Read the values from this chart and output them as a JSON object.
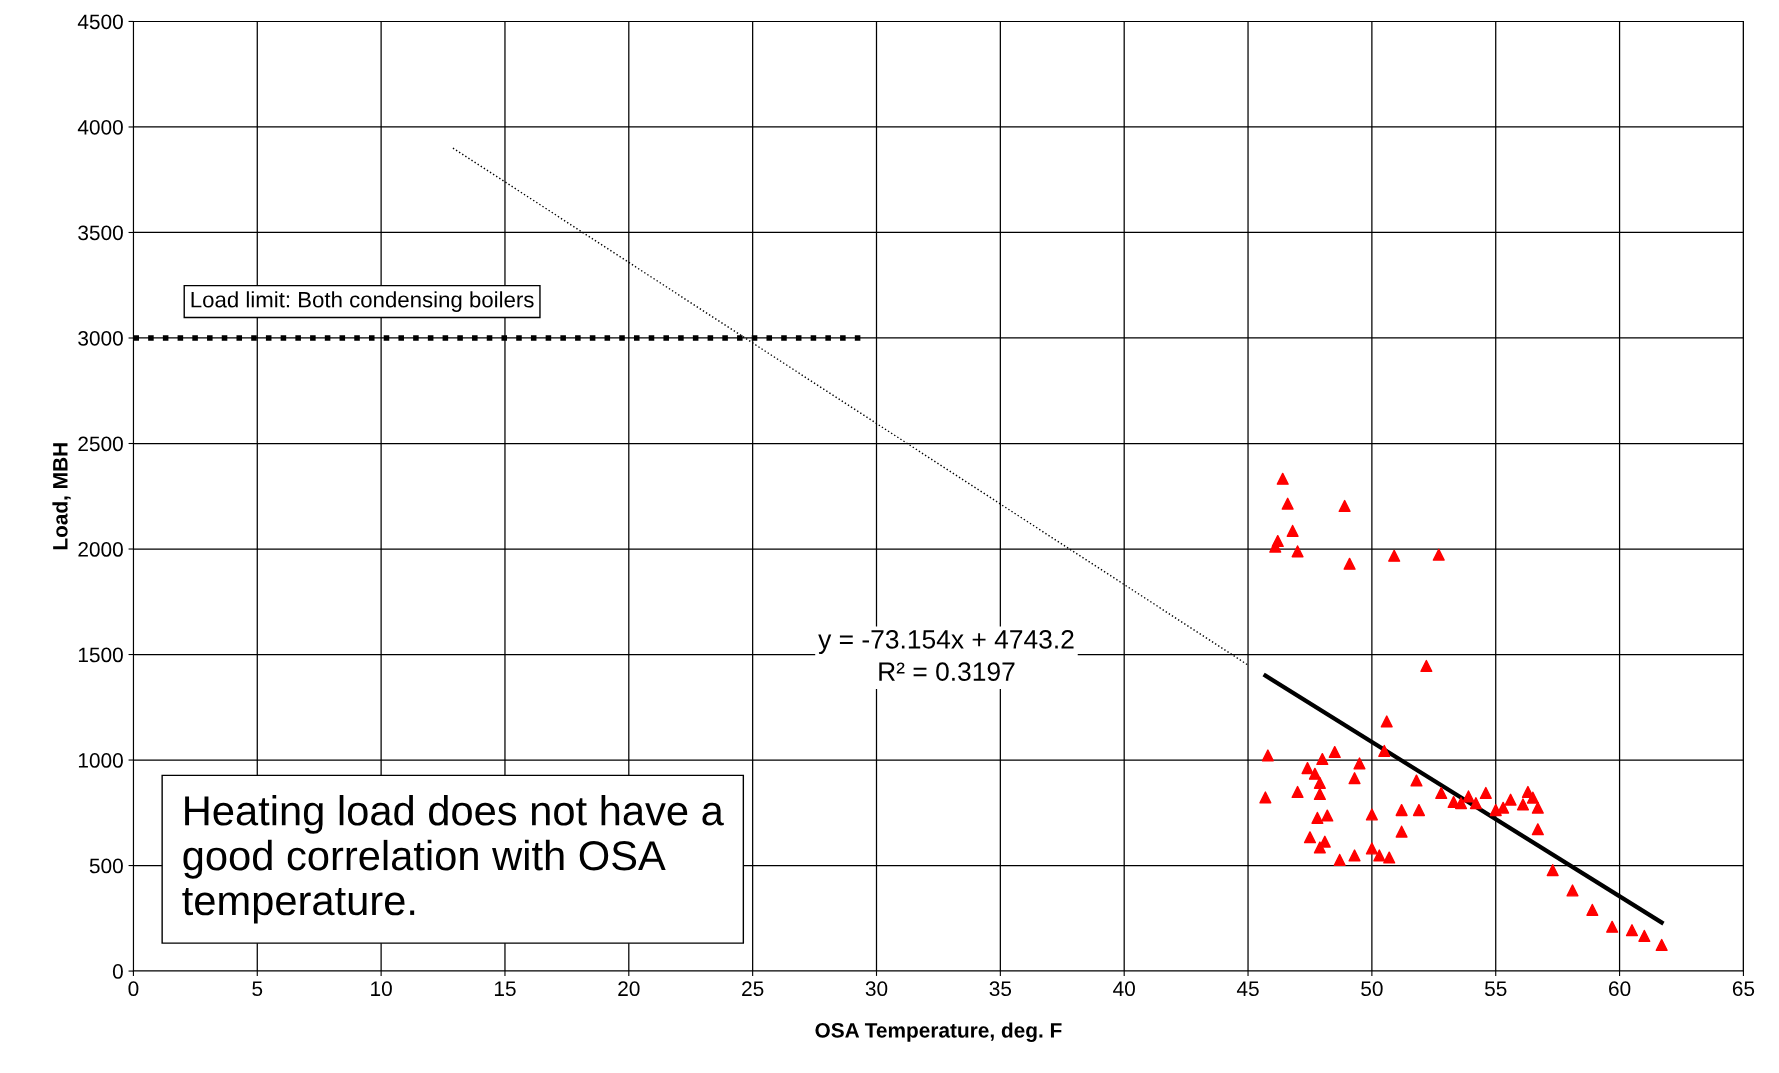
{
  "chart_data": {
    "type": "scatter",
    "xlabel": "OSA Temperature, deg. F",
    "ylabel": "Load, MBH",
    "xlim": [
      0,
      65
    ],
    "xticks": [
      0,
      5,
      10,
      15,
      20,
      25,
      30,
      35,
      40,
      45,
      50,
      55,
      60,
      65
    ],
    "ylim": [
      0,
      4500
    ],
    "yticks": [
      0,
      500,
      1000,
      1500,
      2000,
      2500,
      3000,
      3500,
      4000,
      4500
    ],
    "grid": true,
    "legend": false,
    "series": [
      {
        "color": "#ff0000",
        "marker": "triangle",
        "x": [
          46.4,
          46.6,
          48.9,
          46.8,
          46.2,
          46.1,
          47.0,
          49.1,
          50.9,
          52.7,
          52.2,
          50.6,
          45.8,
          50.5,
          48.5,
          48.0,
          47.4,
          47.7,
          47.9,
          49.5,
          49.3,
          47.0,
          45.7,
          47.9,
          51.8,
          52.8,
          54.6,
          47.8,
          48.2,
          50.0,
          51.2,
          51.9,
          51.2,
          47.5,
          48.1,
          47.9,
          50.0,
          50.3,
          50.7,
          49.3,
          48.7,
          53.3,
          53.6,
          53.9,
          54.2,
          55.0,
          55.3,
          55.6,
          56.1,
          56.3,
          56.5,
          56.7,
          56.7,
          57.3,
          58.1,
          58.9,
          59.7,
          60.5,
          61.0,
          61.7
        ],
        "values": [
          2333,
          2215,
          2204,
          2086,
          2038,
          2011,
          1989,
          1930,
          1968,
          1973,
          1446,
          1183,
          1022,
          1043,
          1038,
          1005,
          962,
          935,
          892,
          984,
          914,
          849,
          823,
          839,
          903,
          844,
          844,
          726,
          737,
          742,
          763,
          763,
          661,
          634,
          613,
          586,
          581,
          548,
          538,
          548,
          527,
          801,
          796,
          828,
          796,
          763,
          774,
          812,
          790,
          849,
          822,
          774,
          672,
          478,
          382,
          290,
          210,
          194,
          167,
          124
        ]
      },
      {
        "type": "line",
        "color": "#000000",
        "line_style": "solid",
        "x": [
          45.7,
          61.7
        ],
        "values": [
          1400,
          230
        ]
      },
      {
        "type": "line",
        "color": "#000000",
        "line_style": "dotted",
        "x": [
          12.9,
          45.0
        ],
        "values": [
          3900,
          1450
        ]
      },
      {
        "type": "line",
        "color": "#000000",
        "line_style": "dotted",
        "x": [
          0,
          29.6
        ],
        "values": [
          3000,
          3000
        ]
      }
    ],
    "annotations": [
      "Load limit: Both condensing boilers",
      "y = -73.154x + 4743.2\nR² = 0.3197",
      "Heating load does not have a\ngood correlation with OSA\ntemperature."
    ]
  }
}
